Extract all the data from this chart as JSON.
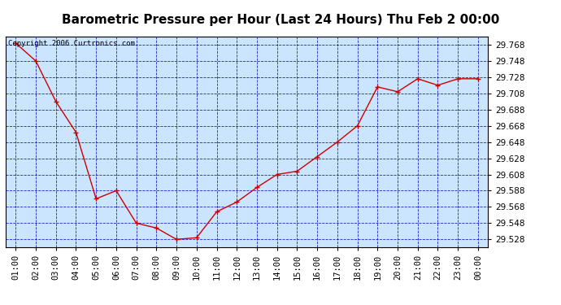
{
  "title": "Barometric Pressure per Hour (Last 24 Hours) Thu Feb 2 00:00",
  "copyright": "Copyright 2006 Curtronics.com",
  "x_labels": [
    "01:00",
    "02:00",
    "03:00",
    "04:00",
    "05:00",
    "06:00",
    "07:00",
    "08:00",
    "09:00",
    "10:00",
    "11:00",
    "12:00",
    "13:00",
    "14:00",
    "15:00",
    "16:00",
    "17:00",
    "18:00",
    "19:00",
    "20:00",
    "21:00",
    "22:00",
    "23:00",
    "00:00"
  ],
  "y_values": [
    29.77,
    29.748,
    29.698,
    29.66,
    29.578,
    29.588,
    29.548,
    29.542,
    29.528,
    29.53,
    29.562,
    29.574,
    29.592,
    29.608,
    29.612,
    29.63,
    29.648,
    29.668,
    29.716,
    29.71,
    29.726,
    29.718,
    29.726,
    29.726
  ],
  "ylim_min": 29.5185,
  "ylim_max": 29.778,
  "y_ticks": [
    29.528,
    29.548,
    29.568,
    29.588,
    29.608,
    29.628,
    29.648,
    29.668,
    29.688,
    29.708,
    29.728,
    29.748,
    29.768
  ],
  "line_color": "#cc0000",
  "marker_color": "#cc0000",
  "plot_bg_color": "#cce5ff",
  "grid_color": "#0000bb",
  "title_fontsize": 11,
  "tick_fontsize": 7.5,
  "copyright_fontsize": 6.5
}
